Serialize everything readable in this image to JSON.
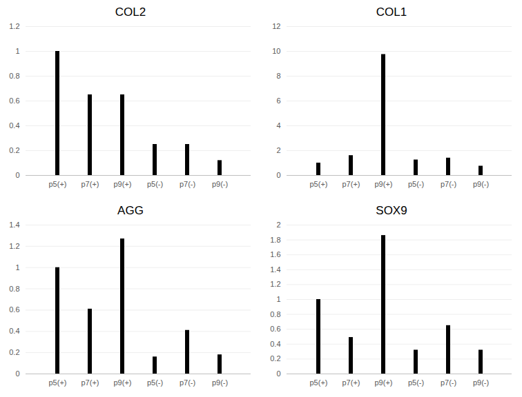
{
  "chart_data": [
    {
      "type": "bar",
      "title": "COL2",
      "categories": [
        "p5(+)",
        "p7(+)",
        "p9(+)",
        "p5(-)",
        "p7(-)",
        "p9(-)"
      ],
      "values": [
        1.0,
        0.65,
        0.65,
        0.25,
        0.25,
        0.12
      ],
      "color": "#000000",
      "ylim": [
        0,
        1.2
      ],
      "yticks": [
        0,
        0.2,
        0.4,
        0.6,
        0.8,
        1,
        1.2
      ],
      "grid": true
    },
    {
      "type": "bar",
      "title": "COL1",
      "categories": [
        "p5(+)",
        "p7(+)",
        "p9(+)",
        "p5(-)",
        "p7(-)",
        "p9(-)"
      ],
      "values": [
        1.0,
        1.6,
        9.75,
        1.25,
        1.4,
        0.75
      ],
      "color": "#000000",
      "ylim": [
        0,
        12
      ],
      "yticks": [
        0,
        2,
        4,
        6,
        8,
        10,
        12
      ],
      "grid": true
    },
    {
      "type": "bar",
      "title": "AGG",
      "categories": [
        "p5(+)",
        "p7(+)",
        "p9(+)",
        "p5(-)",
        "p7(-)",
        "p9(-)"
      ],
      "values": [
        1.0,
        0.61,
        1.27,
        0.16,
        0.41,
        0.18
      ],
      "color": "#000000",
      "ylim": [
        0,
        1.4
      ],
      "yticks": [
        0,
        0.2,
        0.4,
        0.6,
        0.8,
        1,
        1.2,
        1.4
      ],
      "grid": true
    },
    {
      "type": "bar",
      "title": "SOX9",
      "categories": [
        "p5(+)",
        "p7(+)",
        "p9(+)",
        "p5(-)",
        "p7(-)",
        "p9(-)"
      ],
      "values": [
        1.0,
        0.49,
        1.86,
        0.32,
        0.65,
        0.32
      ],
      "color": "#000000",
      "ylim": [
        0,
        2
      ],
      "yticks": [
        0,
        0.2,
        0.4,
        0.6,
        0.8,
        1,
        1.2,
        1.4,
        1.6,
        1.8,
        2
      ],
      "grid": true
    }
  ]
}
